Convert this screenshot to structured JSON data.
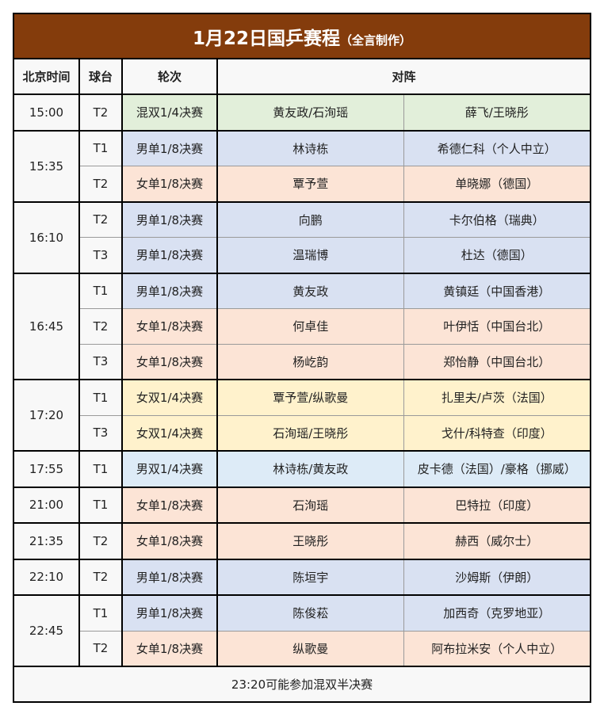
{
  "title": {
    "main": "1月22日国乒赛程",
    "sub": "（全言制作）"
  },
  "headers": {
    "time": "北京时间",
    "table": "球台",
    "round": "轮次",
    "match": "对阵"
  },
  "colors": {
    "title_bg": "#843C0C",
    "mixed": "#E2EFDA",
    "mens_singles": "#D9E1F2",
    "womens_singles": "#FCE4D6",
    "womens_doubles": "#FFF2CC",
    "mens_doubles": "#DDEBF7"
  },
  "groups": [
    {
      "time": "15:00",
      "rows": [
        {
          "table": "T2",
          "round": "混双1/4决赛",
          "p1": "黄友政/石洵瑶",
          "p2": "薛飞/王晓彤",
          "type": "mixed"
        }
      ]
    },
    {
      "time": "15:35",
      "rows": [
        {
          "table": "T1",
          "round": "男单1/8决赛",
          "p1": "林诗栋",
          "p2": "希德仁科（个人中立）",
          "type": "mens_singles"
        },
        {
          "table": "T2",
          "round": "女单1/8决赛",
          "p1": "覃予萱",
          "p2": "单晓娜（德国）",
          "type": "womens_singles"
        }
      ]
    },
    {
      "time": "16:10",
      "rows": [
        {
          "table": "T2",
          "round": "男单1/8决赛",
          "p1": "向鹏",
          "p2": "卡尔伯格（瑞典）",
          "type": "mens_singles"
        },
        {
          "table": "T3",
          "round": "男单1/8决赛",
          "p1": "温瑞博",
          "p2": "杜达（德国）",
          "type": "mens_singles"
        }
      ]
    },
    {
      "time": "16:45",
      "rows": [
        {
          "table": "T1",
          "round": "男单1/8决赛",
          "p1": "黄友政",
          "p2": "黄镇廷（中国香港）",
          "type": "mens_singles"
        },
        {
          "table": "T2",
          "round": "女单1/8决赛",
          "p1": "何卓佳",
          "p2": "叶伊恬（中国台北）",
          "type": "womens_singles"
        },
        {
          "table": "T3",
          "round": "女单1/8决赛",
          "p1": "杨屹韵",
          "p2": "郑怡静（中国台北）",
          "type": "womens_singles"
        }
      ]
    },
    {
      "time": "17:20",
      "rows": [
        {
          "table": "T1",
          "round": "女双1/4决赛",
          "p1": "覃予萱/纵歌曼",
          "p2": "扎里夫/卢茨（法国）",
          "type": "womens_doubles"
        },
        {
          "table": "T3",
          "round": "女双1/4决赛",
          "p1": "石洵瑶/王晓彤",
          "p2": "戈什/科特查（印度）",
          "type": "womens_doubles"
        }
      ]
    },
    {
      "time": "17:55",
      "rows": [
        {
          "table": "T1",
          "round": "男双1/4决赛",
          "p1": "林诗栋/黄友政",
          "p2": "皮卡德（法国）/豪格（挪威）",
          "type": "mens_doubles"
        }
      ]
    },
    {
      "time": "21:00",
      "rows": [
        {
          "table": "T1",
          "round": "女单1/8决赛",
          "p1": "石洵瑶",
          "p2": "巴特拉（印度）",
          "type": "womens_singles"
        }
      ]
    },
    {
      "time": "21:35",
      "rows": [
        {
          "table": "T2",
          "round": "女单1/8决赛",
          "p1": "王晓彤",
          "p2": "赫西（威尔士）",
          "type": "womens_singles"
        }
      ]
    },
    {
      "time": "22:10",
      "rows": [
        {
          "table": "T2",
          "round": "男单1/8决赛",
          "p1": "陈垣宇",
          "p2": "沙姆斯（伊朗）",
          "type": "mens_singles"
        }
      ]
    },
    {
      "time": "22:45",
      "rows": [
        {
          "table": "T1",
          "round": "男单1/8决赛",
          "p1": "陈俊菘",
          "p2": "加西奇（克罗地亚）",
          "type": "mens_singles"
        },
        {
          "table": "T2",
          "round": "女单1/8决赛",
          "p1": "纵歌曼",
          "p2": "阿布拉米安（个人中立）",
          "type": "womens_singles"
        }
      ]
    }
  ],
  "footer": "23:20可能参加混双半决赛"
}
